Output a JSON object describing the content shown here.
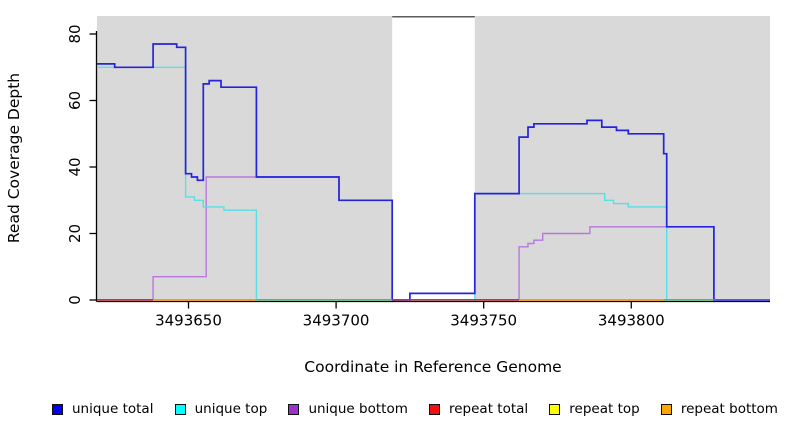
{
  "figure": {
    "xlabel": "Coordinate in Reference Genome",
    "ylabel": "Read Coverage Depth"
  },
  "chart_data": {
    "type": "line",
    "subtype": "step-after",
    "title": "",
    "xlabel": "Coordinate in Reference Genome",
    "ylabel": "Read Coverage Depth",
    "xlim": [
      3493619,
      3493847
    ],
    "ylim": [
      0,
      80
    ],
    "x_ticks": [
      3493650,
      3493700,
      3493750,
      3493800
    ],
    "y_ticks": [
      0,
      20,
      40,
      60,
      80
    ],
    "grid": "off",
    "legend_position": "bottom",
    "plot_background": "#d9d9d9",
    "gap_region": {
      "from": 3493719,
      "to": 3493747,
      "fill": "#ffffff",
      "top_edge_color": "#5a5a5a"
    },
    "series": [
      {
        "name": "repeat total",
        "color": "#cc3344",
        "width": 1.3,
        "points": [
          [
            3493619,
            0
          ],
          [
            3493847,
            0
          ]
        ]
      },
      {
        "name": "repeat top",
        "color": "#efef4d",
        "width": 1.3,
        "points": [
          [
            3493619,
            0
          ],
          [
            3493847,
            0
          ]
        ]
      },
      {
        "name": "repeat bottom",
        "color": "#ff9911",
        "width": 1.3,
        "points": [
          [
            3493619,
            0
          ],
          [
            3493847,
            0
          ]
        ]
      },
      {
        "name": "unique bottom",
        "color": "#b878dc",
        "width": 1.4,
        "points": [
          [
            3493619,
            0
          ],
          [
            3493638,
            7
          ],
          [
            3493656,
            37
          ],
          [
            3493701,
            30
          ],
          [
            3493719,
            0
          ],
          [
            3493762,
            16
          ],
          [
            3493765,
            17
          ],
          [
            3493767,
            18
          ],
          [
            3493770,
            20
          ],
          [
            3493786,
            22
          ],
          [
            3493828,
            0
          ],
          [
            3493847,
            0
          ]
        ]
      },
      {
        "name": "unique top",
        "color": "#55e0e6",
        "width": 1.4,
        "points": [
          [
            3493619,
            70
          ],
          [
            3493649,
            31
          ],
          [
            3493652,
            30
          ],
          [
            3493655,
            28
          ],
          [
            3493662,
            27
          ],
          [
            3493673,
            0
          ],
          [
            3493747,
            32
          ],
          [
            3493791,
            30
          ],
          [
            3493794,
            29
          ],
          [
            3493799,
            28
          ],
          [
            3493812,
            0
          ],
          [
            3493847,
            0
          ]
        ]
      },
      {
        "name": "unique total",
        "color": "#2424df",
        "width": 1.7,
        "points": [
          [
            3493619,
            71
          ],
          [
            3493625,
            70
          ],
          [
            3493638,
            77
          ],
          [
            3493646,
            76
          ],
          [
            3493649,
            38
          ],
          [
            3493651,
            37
          ],
          [
            3493653,
            36
          ],
          [
            3493655,
            65
          ],
          [
            3493657,
            66
          ],
          [
            3493661,
            64
          ],
          [
            3493673,
            37
          ],
          [
            3493701,
            30
          ],
          [
            3493719,
            0
          ],
          [
            3493725,
            2
          ],
          [
            3493747,
            32
          ],
          [
            3493762,
            49
          ],
          [
            3493765,
            52
          ],
          [
            3493767,
            53
          ],
          [
            3493785,
            54
          ],
          [
            3493790,
            52
          ],
          [
            3493795,
            51
          ],
          [
            3493799,
            50
          ],
          [
            3493811,
            44
          ],
          [
            3493812,
            22
          ],
          [
            3493828,
            0
          ],
          [
            3493847,
            0
          ]
        ]
      }
    ],
    "zero_line_segments": [
      {
        "from": 3493619,
        "to": 3493638,
        "color": "#cc3344"
      },
      {
        "from": 3493638,
        "to": 3493673,
        "color": "#ff9911"
      },
      {
        "from": 3493673,
        "to": 3493719,
        "color": "#55b878"
      },
      {
        "from": 3493719,
        "to": 3493762,
        "color": "#cc3344"
      },
      {
        "from": 3493762,
        "to": 3493811,
        "color": "#ff9911"
      },
      {
        "from": 3493811,
        "to": 3493828,
        "color": "#55b878"
      },
      {
        "from": 3493828,
        "to": 3493847,
        "color": "#6a55d8"
      }
    ],
    "legend": [
      {
        "label": "unique total",
        "swatch": "#0000ee"
      },
      {
        "label": "unique top",
        "swatch": "#00ffff"
      },
      {
        "label": "unique bottom",
        "swatch": "#9932cc"
      },
      {
        "label": "repeat total",
        "swatch": "#ee1111"
      },
      {
        "label": "repeat top",
        "swatch": "#ffff00"
      },
      {
        "label": "repeat bottom",
        "swatch": "#ffa500"
      }
    ],
    "axis_color": "#000000"
  }
}
